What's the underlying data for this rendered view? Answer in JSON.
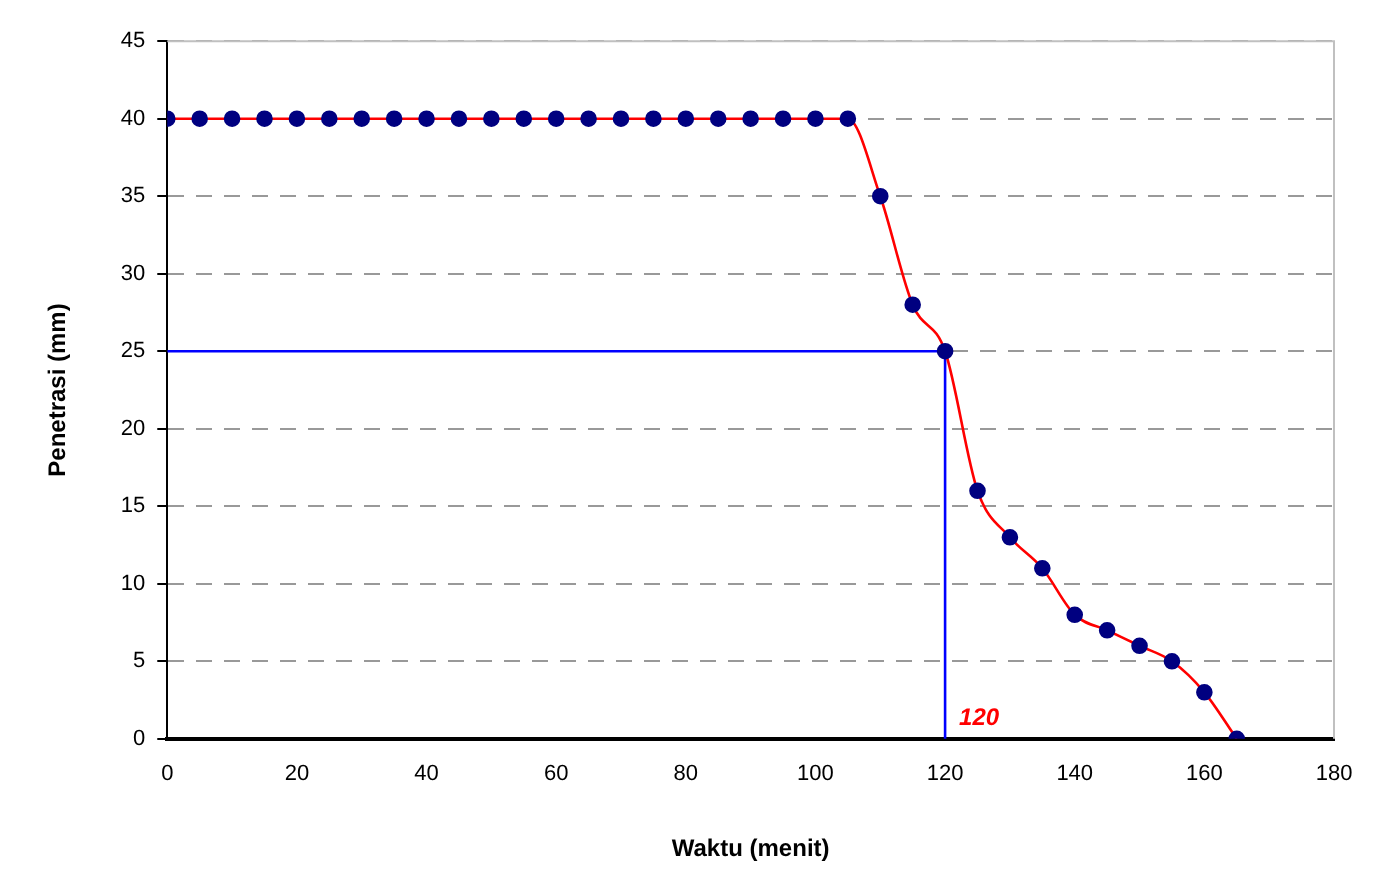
{
  "chart_data": {
    "type": "line",
    "xlabel": "Waktu (menit)",
    "ylabel": "Penetrasi (mm)",
    "xlim": [
      0,
      180
    ],
    "xticks": [
      0,
      20,
      40,
      60,
      80,
      100,
      120,
      140,
      160,
      180
    ],
    "ylim": [
      0,
      45
    ],
    "yticks": [
      0,
      5,
      10,
      15,
      20,
      25,
      30,
      35,
      40,
      45
    ],
    "grid": "y",
    "legend": false,
    "marker": "circle",
    "series": [
      {
        "color": "#ff0000",
        "x": [
          0,
          5,
          10,
          15,
          20,
          25,
          30,
          35,
          40,
          45,
          50,
          55,
          60,
          65,
          70,
          75,
          80,
          85,
          90,
          95,
          100,
          105,
          110,
          115,
          120,
          125,
          130,
          135,
          140,
          145,
          150,
          155,
          160,
          165
        ],
        "values": [
          40,
          40,
          40,
          40,
          40,
          40,
          40,
          40,
          40,
          40,
          40,
          40,
          40,
          40,
          40,
          40,
          40,
          40,
          40,
          40,
          40,
          40,
          35,
          28,
          25,
          16,
          13,
          11,
          8,
          7,
          6,
          5,
          3,
          0
        ]
      },
      {
        "color": "#0000ff",
        "marker": "none",
        "x": [
          0,
          120,
          120
        ],
        "values": [
          25,
          25,
          0
        ]
      }
    ],
    "annotations": [
      {
        "text": "120",
        "x": 120,
        "y": 0
      }
    ]
  }
}
